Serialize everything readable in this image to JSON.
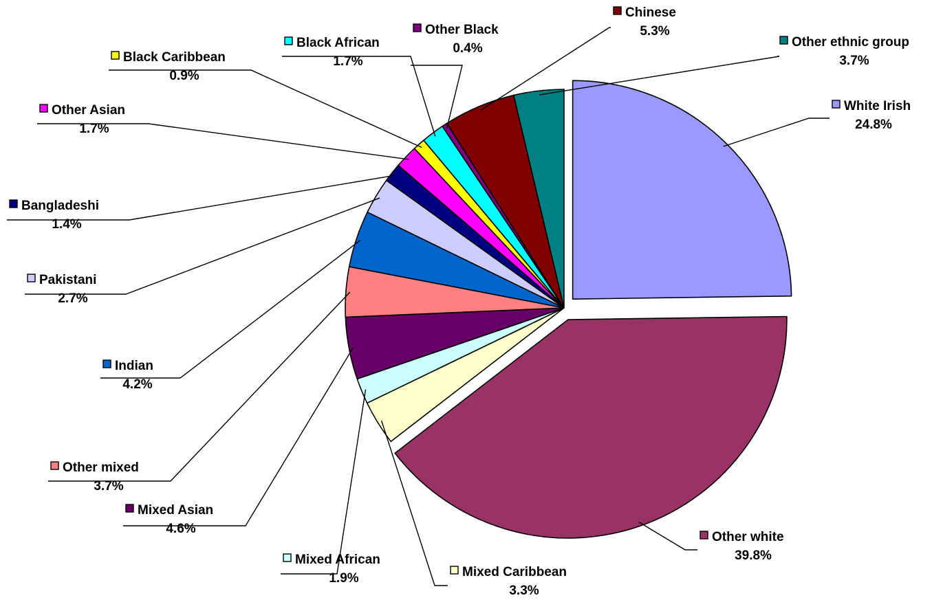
{
  "chart_data": {
    "type": "pie",
    "title": "",
    "legend": "none",
    "slices": [
      {
        "label": "White Irish",
        "value": 24.8,
        "value_label": "24.8%",
        "color": "#9999ff",
        "exploded": true
      },
      {
        "label": "Other white",
        "value": 39.8,
        "value_label": "39.8%",
        "color": "#993366",
        "exploded": true
      },
      {
        "label": "Mixed Caribbean",
        "value": 3.3,
        "value_label": "3.3%",
        "color": "#ffffcc",
        "exploded": false
      },
      {
        "label": "Mixed African",
        "value": 1.9,
        "value_label": "1.9%",
        "color": "#ccffff",
        "exploded": false
      },
      {
        "label": "Mixed Asian",
        "value": 4.6,
        "value_label": "4.6%",
        "color": "#660066",
        "exploded": false
      },
      {
        "label": "Other mixed",
        "value": 3.7,
        "value_label": "3.7%",
        "color": "#ff8080",
        "exploded": false
      },
      {
        "label": "Indian",
        "value": 4.2,
        "value_label": "4.2%",
        "color": "#0066cc",
        "exploded": false
      },
      {
        "label": "Pakistani",
        "value": 2.7,
        "value_label": "2.7%",
        "color": "#ccccff",
        "exploded": false
      },
      {
        "label": "Bangladeshi",
        "value": 1.4,
        "value_label": "1.4%",
        "color": "#000080",
        "exploded": false
      },
      {
        "label": "Other Asian",
        "value": 1.7,
        "value_label": "1.7%",
        "color": "#ff00ff",
        "exploded": false
      },
      {
        "label": "Black Caribbean",
        "value": 0.9,
        "value_label": "0.9%",
        "color": "#ffff00",
        "exploded": false
      },
      {
        "label": "Black African",
        "value": 1.7,
        "value_label": "1.7%",
        "color": "#00ffff",
        "exploded": false
      },
      {
        "label": "Other Black",
        "value": 0.4,
        "value_label": "0.4%",
        "color": "#800080",
        "exploded": false
      },
      {
        "label": "Chinese",
        "value": 5.3,
        "value_label": "5.3%",
        "color": "#800000",
        "exploded": false
      },
      {
        "label": "Other ethnic group",
        "value": 3.7,
        "value_label": "3.7%",
        "color": "#008080",
        "exploded": false
      }
    ]
  }
}
